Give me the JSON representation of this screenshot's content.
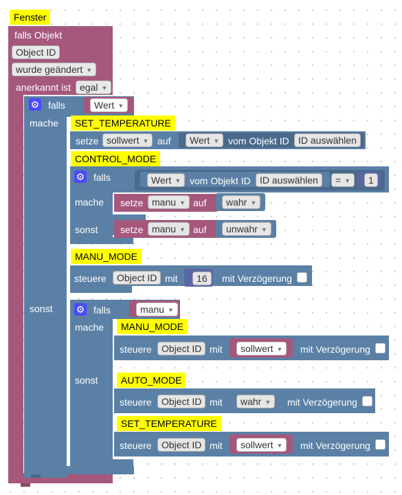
{
  "blocks": {
    "window_comment": "Fenster",
    "trigger": {
      "label": "falls Objekt",
      "object_id": "Object ID",
      "event": "wurde geändert",
      "ack_label": "anerkannt ist",
      "ack_value": "egal"
    },
    "outer_if": {
      "falls": "falls",
      "mache": "mache",
      "sonst": "sonst",
      "condition": "Wert",
      "then": {
        "set_temp_comment": "SET_TEMPERATURE",
        "setze_label": "setze",
        "setze_var": "sollwert",
        "auf_label": "auf",
        "wert_label": "Wert",
        "vom_objekt_label": "vom Objekt ID",
        "id_select": "ID auswählen",
        "control_mode_comment": "CONTROL_MODE",
        "inner_if": {
          "falls": "falls",
          "mache": "mache",
          "sonst": "sonst",
          "wert_label": "Wert",
          "vom_objekt_label": "vom Objekt ID",
          "id_select": "ID auswählen",
          "operator": "=",
          "compare_value": "1",
          "then_setze": "setze",
          "then_var": "manu",
          "then_auf": "auf",
          "then_value": "wahr",
          "else_setze": "setze",
          "else_var": "manu",
          "else_auf": "auf",
          "else_value": "unwahr"
        },
        "manu_mode_comment": "MANU_MODE",
        "steuere": {
          "label": "steuere",
          "object_id": "Object ID",
          "mit": "mit",
          "value": "16",
          "delay_label": "mit Verzögerung"
        }
      },
      "else": {
        "falls": "falls",
        "condition": "manu",
        "mache": "mache",
        "sonst": "sonst",
        "manu_mode_comment": "MANU_MODE",
        "steuere1": {
          "label": "steuere",
          "object_id": "Object ID",
          "mit": "mit",
          "value": "sollwert",
          "delay_label": "mit Verzögerung"
        },
        "auto_mode_comment": "AUTO_MODE",
        "steuere2": {
          "label": "steuere",
          "object_id": "Object ID",
          "mit": "mit",
          "value": "wahr",
          "delay_label": "mit Verzögerung"
        },
        "set_temp_comment": "SET_TEMPERATURE",
        "steuere3": {
          "label": "steuere",
          "object_id": "Object ID",
          "mit": "mit",
          "value": "sollwert",
          "delay_label": "mit Verzögerung"
        }
      }
    }
  },
  "icon": "gear-icon",
  "colors": {
    "trigger_block": "#a5577c",
    "logic_block": "#5b80a5",
    "comment": "#ffff00",
    "gear": "#4a4aff"
  }
}
